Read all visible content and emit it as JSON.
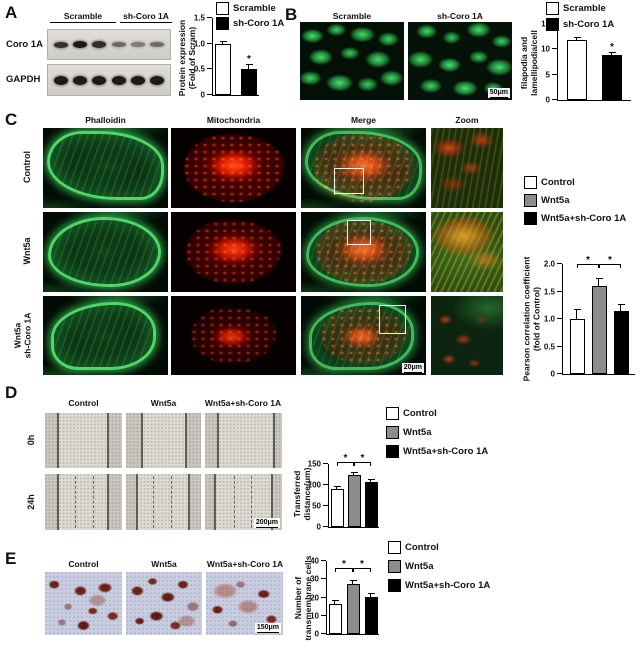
{
  "panels": {
    "A": {
      "letter": "A",
      "group_labels": [
        "Scramble",
        "sh-Coro 1A"
      ],
      "blot_rows": [
        "Coro 1A",
        "GAPDH"
      ]
    },
    "B": {
      "letter": "B",
      "image_titles": [
        "Scramble",
        "sh-Coro 1A"
      ],
      "scale_bar": "50μm"
    },
    "C": {
      "letter": "C",
      "column_titles": [
        "Phalloidin",
        "Mitochondria",
        "Merge",
        "Zoom"
      ],
      "row_titles": [
        [
          "Control"
        ],
        [
          "Wnt5a"
        ],
        [
          "Wnt5a",
          "sh-Coro 1A"
        ]
      ],
      "scale_bar": "20μm"
    },
    "D": {
      "letter": "D",
      "column_titles": [
        "Control",
        "Wnt5a",
        "Wnt5a+sh-Coro 1A"
      ],
      "row_titles": [
        "0h",
        "24h"
      ],
      "scale_bar": "200μm"
    },
    "E": {
      "letter": "E",
      "column_titles": [
        "Control",
        "Wnt5a",
        "Wnt5a+sh-Coro 1A"
      ],
      "scale_bar": "150μm"
    }
  },
  "legends": {
    "scramble_set": [
      {
        "label": "Scramble",
        "color": "#ffffff"
      },
      {
        "label": "sh-Coro 1A",
        "color": "#000000"
      }
    ],
    "wnt_set": [
      {
        "label": "Control",
        "color": "#ffffff"
      },
      {
        "label": "Wnt5a",
        "color": "#8c8c8c"
      },
      {
        "label": "Wnt5a+sh-Coro 1A",
        "color": "#000000"
      }
    ]
  },
  "chart_data": [
    {
      "id": "protein-expression",
      "type": "bar",
      "categories": [
        "Scramble",
        "sh-Coro 1A"
      ],
      "values": [
        1.0,
        0.5
      ],
      "errors": [
        0.04,
        0.09
      ],
      "bar_colors": [
        "#ffffff",
        "#000000"
      ],
      "ylabel": "Protein expression (Fold of Scram)",
      "ylabel_lines": [
        "Protein expression",
        "(Fold of Scram)"
      ],
      "ylim": [
        0,
        1.5
      ],
      "ytick_values": [
        0,
        0.5,
        1.0,
        1.5
      ],
      "ytick_labels": [
        "0",
        "0.5",
        "1.0",
        "1.5"
      ],
      "stars": [
        {
          "bar": 1,
          "label": "*"
        }
      ]
    },
    {
      "id": "filopodia-lamellipodia",
      "type": "bar",
      "categories": [
        "Scramble",
        "sh-Coro 1A"
      ],
      "values": [
        11.8,
        8.8
      ],
      "errors": [
        0.5,
        0.35
      ],
      "bar_colors": [
        "#ffffff",
        "#000000"
      ],
      "ylabel": "filapodia and lamellipodia/cell",
      "ylabel_lines": [
        "filapodia and",
        "lamellipodia/cell"
      ],
      "ylim": [
        0,
        15
      ],
      "ytick_values": [
        0,
        5,
        10,
        15
      ],
      "ytick_labels": [
        "0",
        "5",
        "10",
        "15"
      ],
      "stars": [
        {
          "bar": 1,
          "label": "*"
        }
      ]
    },
    {
      "id": "pearson-correlation",
      "type": "bar",
      "categories": [
        "Control",
        "Wnt5a",
        "Wnt5a+sh-Coro 1A"
      ],
      "values": [
        1.0,
        1.6,
        1.15
      ],
      "errors": [
        0.16,
        0.12,
        0.1
      ],
      "bar_colors": [
        "#ffffff",
        "#8c8c8c",
        "#000000"
      ],
      "ylabel": "Pearson correlation coefficient (fold of Control)",
      "ylabel_lines": [
        "Pearson correlation coefficient",
        "(fold of Control)"
      ],
      "ylim": [
        0,
        2.0
      ],
      "ytick_values": [
        0,
        0.5,
        1.0,
        1.5,
        2.0
      ],
      "ytick_labels": [
        "0",
        "0.5",
        "1.0",
        "1.5",
        "2.0"
      ],
      "brackets": [
        {
          "from": 0,
          "to": 1,
          "label": "*"
        },
        {
          "from": 1,
          "to": 2,
          "label": "*"
        }
      ],
      "bracket_y": 1.93
    },
    {
      "id": "transferred-distance",
      "type": "bar",
      "categories": [
        "Control",
        "Wnt5a",
        "Wnt5a+sh-Coro 1A"
      ],
      "values": [
        90,
        124,
        107
      ],
      "errors": [
        3,
        5,
        3
      ],
      "bar_colors": [
        "#ffffff",
        "#8c8c8c",
        "#000000"
      ],
      "ylabel": "Transferred distance(μm)",
      "ylabel_lines": [
        "Transferred",
        "distance(μm)"
      ],
      "ylim": [
        0,
        150
      ],
      "ytick_values": [
        0,
        50,
        100,
        150
      ],
      "ytick_labels": [
        "0",
        "50",
        "100",
        "150"
      ],
      "brackets": [
        {
          "from": 0,
          "to": 1,
          "label": "*"
        },
        {
          "from": 1,
          "to": 2,
          "label": "*"
        }
      ],
      "bracket_y": 146
    },
    {
      "id": "transmembrane-cells",
      "type": "bar",
      "categories": [
        "Control",
        "Wnt5a",
        "Wnt5a+sh-Coro 1A"
      ],
      "values": [
        16.5,
        27.5,
        20.5
      ],
      "errors": [
        1.5,
        1.5,
        1.2
      ],
      "bar_colors": [
        "#ffffff",
        "#8c8c8c",
        "#000000"
      ],
      "ylabel": "Number of transmembrane cells",
      "ylabel_lines": [
        "Number of",
        "transmembrane cells"
      ],
      "ylim": [
        0,
        40
      ],
      "ytick_values": [
        0,
        10,
        20,
        30,
        40
      ],
      "ytick_labels": [
        "0",
        "10",
        "20",
        "30",
        "40"
      ],
      "brackets": [
        {
          "from": 0,
          "to": 1,
          "label": "*"
        },
        {
          "from": 1,
          "to": 2,
          "label": "*"
        }
      ],
      "bracket_y": 34
    }
  ]
}
